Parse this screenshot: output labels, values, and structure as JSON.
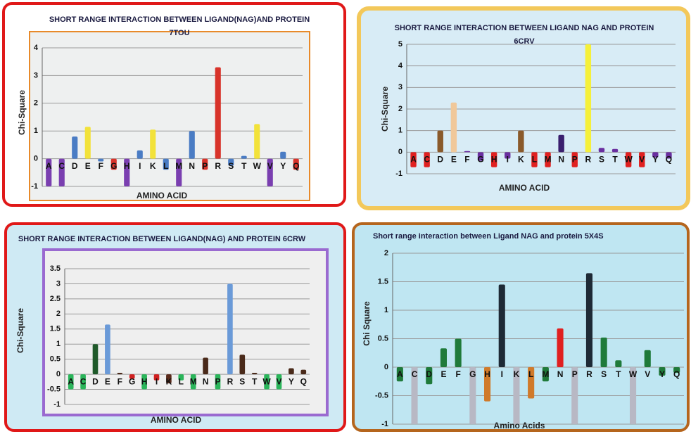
{
  "chart_data": [
    {
      "type": "bar",
      "title": [
        "SHORT RANGE INTERACTION BETWEEN LIGAND(NAG)AND PROTEIN",
        "7TOU"
      ],
      "xlabel": "AMINO ACID",
      "ylabel": "Chi-Square",
      "categories": [
        "A",
        "C",
        "D",
        "E",
        "F",
        "G",
        "H",
        "I",
        "K",
        "L",
        "M",
        "N",
        "P",
        "R",
        "S",
        "T",
        "W",
        "V",
        "Y",
        "Q"
      ],
      "values": [
        -1,
        -1,
        0.8,
        1.15,
        -0.1,
        -0.4,
        -1,
        0.3,
        1.05,
        -0.4,
        -1,
        1.0,
        -0.4,
        3.3,
        -0.25,
        0.1,
        1.25,
        -1,
        0.25,
        -0.4
      ],
      "colors": [
        "#7a3fb0",
        "#7a3fb0",
        "#4a7cc4",
        "#f2e23a",
        "#4a7cc4",
        "#d8332a",
        "#7a3fb0",
        "#4a7cc4",
        "#f2e23a",
        "#4a7cc4",
        "#7a3fb0",
        "#4a7cc4",
        "#d8332a",
        "#d8332a",
        "#4a7cc4",
        "#4a7cc4",
        "#f2e23a",
        "#7a3fb0",
        "#4a7cc4",
        "#d8332a"
      ],
      "ylim": [
        -1,
        4
      ],
      "yticks": [
        -1,
        0,
        1,
        2,
        3,
        4
      ],
      "grid": true
    },
    {
      "type": "bar",
      "title": [
        "SHORT  RANGE INTERACTION BETWEEN LIGAND NAG AND PROTEIN",
        "6CRV"
      ],
      "xlabel": "AMINO ACID",
      "ylabel": "Chi-Square",
      "categories": [
        "A",
        "C",
        "D",
        "E",
        "F",
        "G",
        "H",
        "I",
        "K",
        "L",
        "M",
        "N",
        "P",
        "R",
        "S",
        "T",
        "W",
        "V",
        "Y",
        "Q"
      ],
      "values": [
        -0.7,
        -0.7,
        1.0,
        2.3,
        0.05,
        -0.4,
        -0.7,
        -0.3,
        1.0,
        -0.7,
        -0.7,
        0.8,
        -0.7,
        5.0,
        0.2,
        0.15,
        -0.7,
        -0.7,
        -0.25,
        -0.3
      ],
      "colors": [
        "#e02020",
        "#e02020",
        "#8a5a2b",
        "#f0c89a",
        "#6a2fa0",
        "#6a2fa0",
        "#e02020",
        "#6a2fa0",
        "#8a5a2b",
        "#e02020",
        "#e02020",
        "#3a1f6e",
        "#e02020",
        "#f5f03a",
        "#6a2fa0",
        "#6a2fa0",
        "#e02020",
        "#e02020",
        "#6a2fa0",
        "#6a2fa0"
      ],
      "ylim": [
        -1,
        5
      ],
      "yticks": [
        -1,
        0,
        1,
        2,
        3,
        4,
        5
      ],
      "grid": true
    },
    {
      "type": "bar",
      "title": [
        "SHORT RANGE INTERACTION BETWEEN LIGAND(NAG) AND PROTEIN 6CRW"
      ],
      "xlabel": "AMINO  ACID",
      "ylabel": "Chi-Square",
      "categories": [
        "A",
        "C",
        "D",
        "E",
        "F",
        "G",
        "H",
        "I",
        "K",
        "L",
        "M",
        "N",
        "P",
        "R",
        "S",
        "T",
        "W",
        "V",
        "Y",
        "Q"
      ],
      "values": [
        -0.5,
        -0.5,
        1.0,
        1.65,
        0.05,
        -0.15,
        -0.5,
        -0.2,
        -0.3,
        -0.2,
        -0.5,
        0.55,
        -0.5,
        3.0,
        0.65,
        0.05,
        -0.5,
        -0.5,
        0.2,
        0.15
      ],
      "colors": [
        "#2ab55a",
        "#2ab55a",
        "#1f5a2a",
        "#6a9ad8",
        "#4a2a1a",
        "#d02020",
        "#2ab55a",
        "#d02020",
        "#5a2a1a",
        "#2ab55a",
        "#2ab55a",
        "#4a2a1a",
        "#2ab55a",
        "#6a9ad8",
        "#4a2a1a",
        "#4a2a1a",
        "#2ab55a",
        "#2ab55a",
        "#4a2a1a",
        "#4a2a1a"
      ],
      "ylim": [
        -1,
        3.5
      ],
      "yticks": [
        -1,
        -0.5,
        0,
        0.5,
        1,
        1.5,
        2,
        2.5,
        3,
        3.5
      ],
      "grid": true
    },
    {
      "type": "bar",
      "title": [
        "Short range interaction between Ligand NAG and protein  5X4S"
      ],
      "xlabel": "Amino Acids",
      "ylabel": "Chi Square",
      "categories": [
        "A",
        "C",
        "D",
        "E",
        "F",
        "G",
        "H",
        "I",
        "K",
        "L",
        "M",
        "N",
        "P",
        "R",
        "S",
        "T",
        "W",
        "V",
        "Y",
        "Q"
      ],
      "values": [
        -0.25,
        -1,
        -0.3,
        0.33,
        0.5,
        -1,
        -0.6,
        1.45,
        -1,
        -0.55,
        -0.25,
        0.68,
        -1,
        1.65,
        0.52,
        0.12,
        -1,
        0.3,
        -0.15,
        -0.1
      ],
      "colors": [
        "#1f7a3a",
        "#b8b8c4",
        "#1f7a3a",
        "#1f7a3a",
        "#1f7a3a",
        "#b8b8c4",
        "#d07a2a",
        "#1e2a36",
        "#b8b8c4",
        "#d07a2a",
        "#1f7a3a",
        "#e02020",
        "#b8b8c4",
        "#1e2a36",
        "#1f7a3a",
        "#1f7a3a",
        "#b8b8c4",
        "#1f7a3a",
        "#1f7a3a",
        "#1f7a3a"
      ],
      "ylim": [
        -1,
        2
      ],
      "yticks": [
        -1,
        -0.5,
        0,
        0.5,
        1,
        1.5,
        2
      ],
      "grid": true
    }
  ]
}
